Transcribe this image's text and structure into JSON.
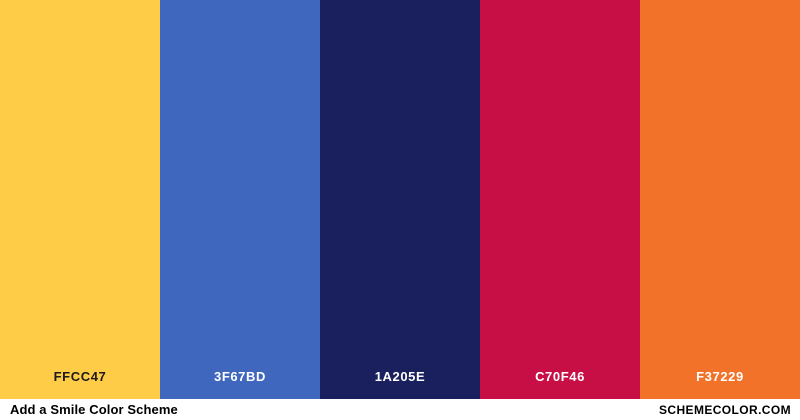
{
  "palette": {
    "title": "Add a Smile Color Scheme",
    "site": "SCHEMECOLOR.COM",
    "swatches": [
      {
        "hex_label": "FFCC47",
        "color": "#FFCC47",
        "label_color": "#1b1b1b"
      },
      {
        "hex_label": "3F67BD",
        "color": "#3F67BD",
        "label_color": "#FFFFFF"
      },
      {
        "hex_label": "1A205E",
        "color": "#1A205E",
        "label_color": "#FFFFFF"
      },
      {
        "hex_label": "C70F46",
        "color": "#C70F46",
        "label_color": "#FFFFFF"
      },
      {
        "hex_label": "F37229",
        "color": "#F37229",
        "label_color": "#FFFFFF"
      }
    ]
  }
}
